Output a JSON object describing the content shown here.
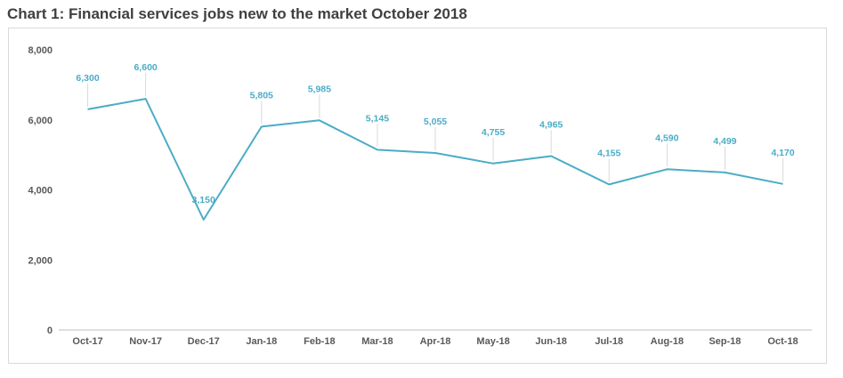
{
  "title": "Chart 1: Financial services jobs new to the market October 2018",
  "chart_data": {
    "type": "line",
    "title": "Chart 1: Financial services jobs new to the market October 2018",
    "xlabel": "",
    "ylabel": "",
    "categories": [
      "Oct-17",
      "Nov-17",
      "Dec-17",
      "Jan-18",
      "Feb-18",
      "Mar-18",
      "Apr-18",
      "May-18",
      "Jun-18",
      "Jul-18",
      "Aug-18",
      "Sep-18",
      "Oct-18"
    ],
    "series": [
      {
        "values": [
          6300,
          6600,
          3150,
          5805,
          5985,
          5145,
          5055,
          4755,
          4965,
          4155,
          4590,
          4499,
          4170
        ]
      }
    ],
    "data_labels": [
      "6,300",
      "6,600",
      "3,150",
      "5,805",
      "5,985",
      "5,145",
      "5,055",
      "4,755",
      "4,965",
      "4,155",
      "4,590",
      "4,499",
      "4,170"
    ],
    "yticks": [
      0,
      2000,
      4000,
      6000,
      8000
    ],
    "ytick_labels": [
      "0",
      "2,000",
      "4,000",
      "6,000",
      "8,000"
    ],
    "ylim": [
      0,
      8000
    ],
    "grid": false,
    "legend": "none",
    "colors": {
      "line": "#4BACC6",
      "label": "#4BACC6",
      "axis": "#bfbfbf",
      "tick": "#595959"
    }
  }
}
